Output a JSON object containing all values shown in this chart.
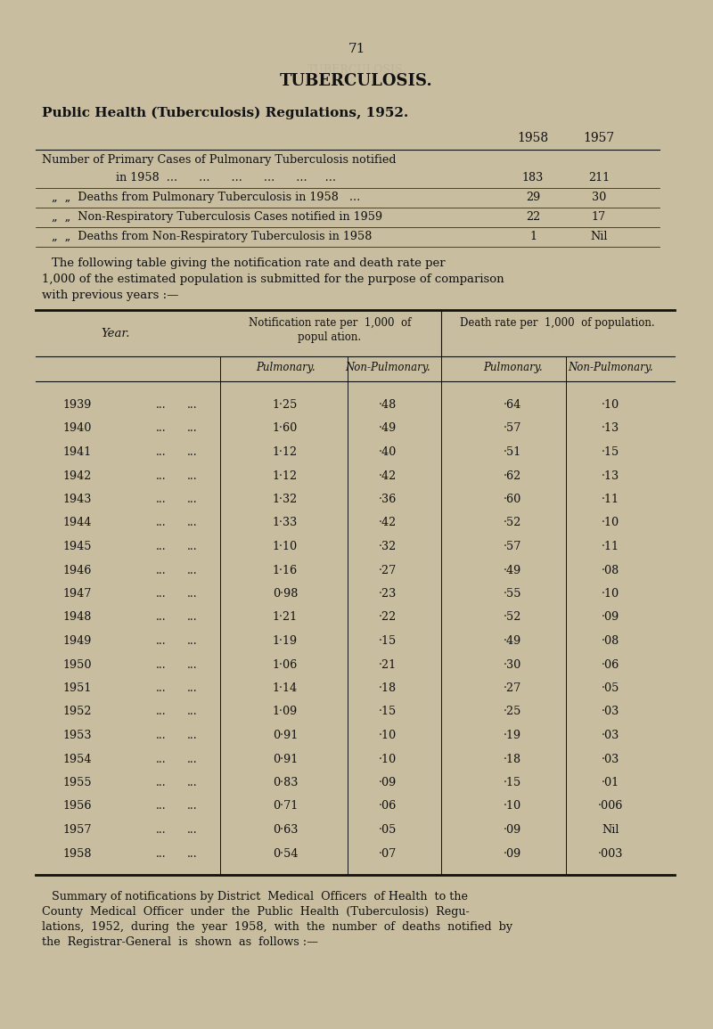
{
  "bg_color": "#c9bda0",
  "page_number": "71",
  "title": "TUBERCULOSIS.",
  "subtitle": "Public Health (Tuberculosis) Regulations, 1952.",
  "table_data": [
    [
      "1939",
      "1·25",
      "·48",
      "·64",
      "·10"
    ],
    [
      "1940",
      "1·60",
      "·49",
      "·57",
      "·13"
    ],
    [
      "1941",
      "1·12",
      "·40",
      "·51",
      "·15"
    ],
    [
      "1942",
      "1·12",
      "·42",
      "·62",
      "·13"
    ],
    [
      "1943",
      "1·32",
      "·36",
      "·60",
      "·11"
    ],
    [
      "1944",
      "1·33",
      "·42",
      "·52",
      "·10"
    ],
    [
      "1945",
      "1·10",
      "·32",
      "·57",
      "·11"
    ],
    [
      "1946",
      "1·16",
      "·27",
      "·49",
      "·08"
    ],
    [
      "1947",
      "0·98",
      "·23",
      "·55",
      "·10"
    ],
    [
      "1948",
      "1·21",
      "·22",
      "·52",
      "·09"
    ],
    [
      "1949",
      "1·19",
      "·15",
      "·49",
      "·08"
    ],
    [
      "1950",
      "1·06",
      "·21",
      "·30",
      "·06"
    ],
    [
      "1951",
      "1·14",
      "·18",
      "·27",
      "·05"
    ],
    [
      "1952",
      "1·09",
      "·15",
      "·25",
      "·03"
    ],
    [
      "1953",
      "0·91",
      "·10",
      "·19",
      "·03"
    ],
    [
      "1954",
      "0·91",
      "·10",
      "·18",
      "·03"
    ],
    [
      "1955",
      "0·83",
      "·09",
      "·15",
      "·01"
    ],
    [
      "1956",
      "0·71",
      "·06",
      "·10",
      "·006"
    ],
    [
      "1957",
      "0·63",
      "·05",
      "·09",
      "Nil"
    ],
    [
      "1958",
      "0·54",
      "·07",
      "·09",
      "·003"
    ]
  ],
  "footer_text": "Summary of notifications by District  Medical  Officers  of Health  to the\nCounty  Medical  Officer  under  the  Public  Health  (Tuberculosis)  Regu-\nlations,  1952,  during  the  year  1958,  with  the  number  of  deaths  notified  by\nthe  Registrar-General  is  shown  as  follows :—",
  "text_color": "#111111"
}
